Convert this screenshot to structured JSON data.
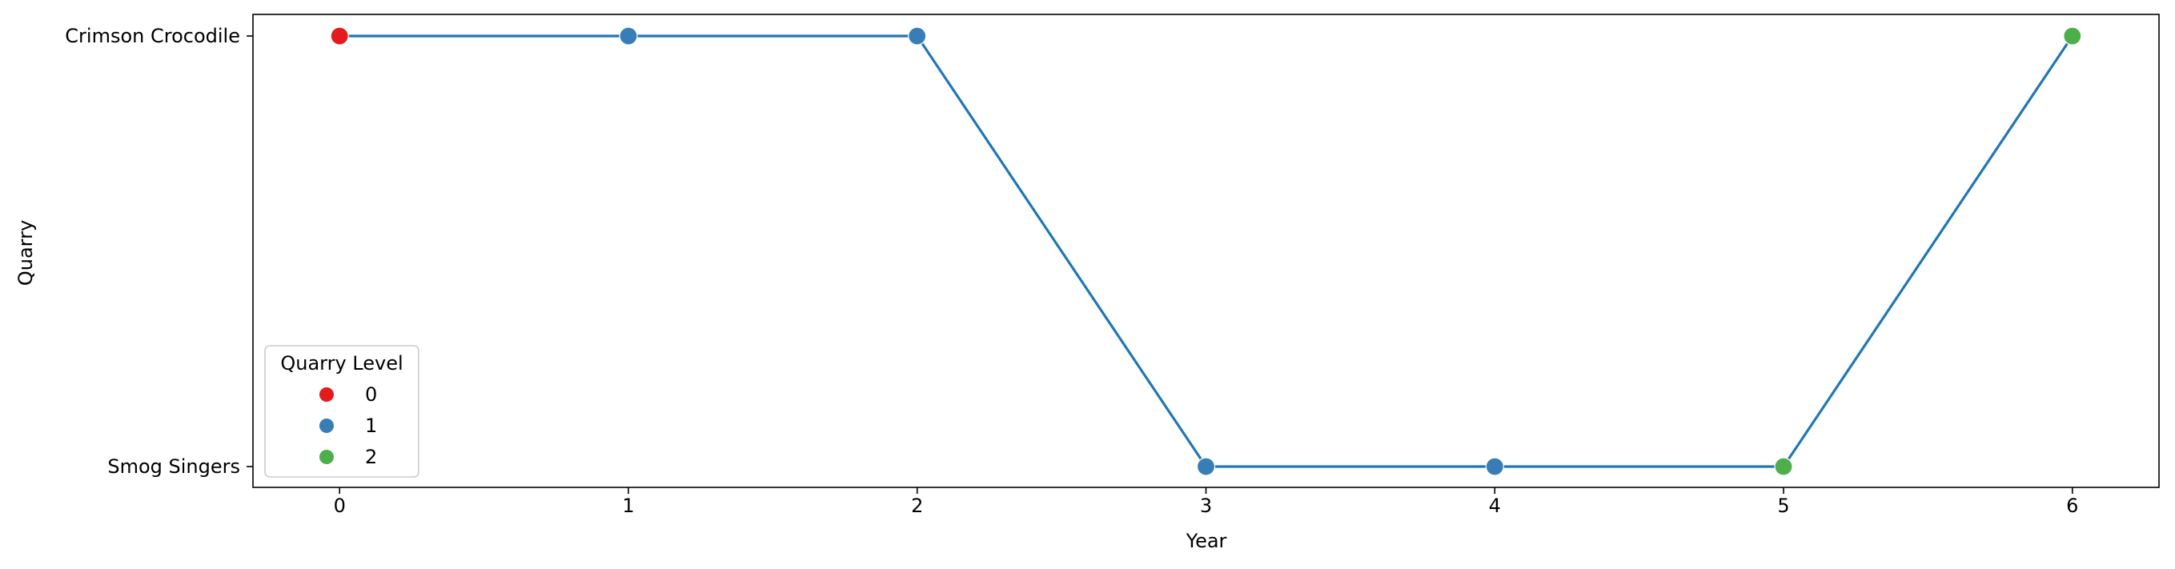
{
  "chart_data": {
    "type": "line",
    "xlabel": "Year",
    "ylabel": "Quarry",
    "x": [
      0,
      1,
      2,
      3,
      4,
      5,
      6
    ],
    "y": [
      "Crimson Crocodile",
      "Crimson Crocodile",
      "Crimson Crocodile",
      "Smog Singers",
      "Smog Singers",
      "Smog Singers",
      "Crimson Crocodile"
    ],
    "level": [
      0,
      1,
      1,
      1,
      1,
      2,
      2
    ],
    "y_categories": [
      "Smog Singers",
      "Crimson Crocodile"
    ],
    "x_ticks": [
      0,
      1,
      2,
      3,
      4,
      5,
      6
    ],
    "xlim": [
      -0.3,
      6.3
    ],
    "line_color": "#1f77b4",
    "grid": false,
    "legend": {
      "title": "Quarry Level",
      "placement": "lower-left",
      "entries": [
        {
          "label": "0",
          "color": "#e41a1c"
        },
        {
          "label": "1",
          "color": "#377eb8"
        },
        {
          "label": "2",
          "color": "#4daf4a"
        }
      ]
    }
  }
}
